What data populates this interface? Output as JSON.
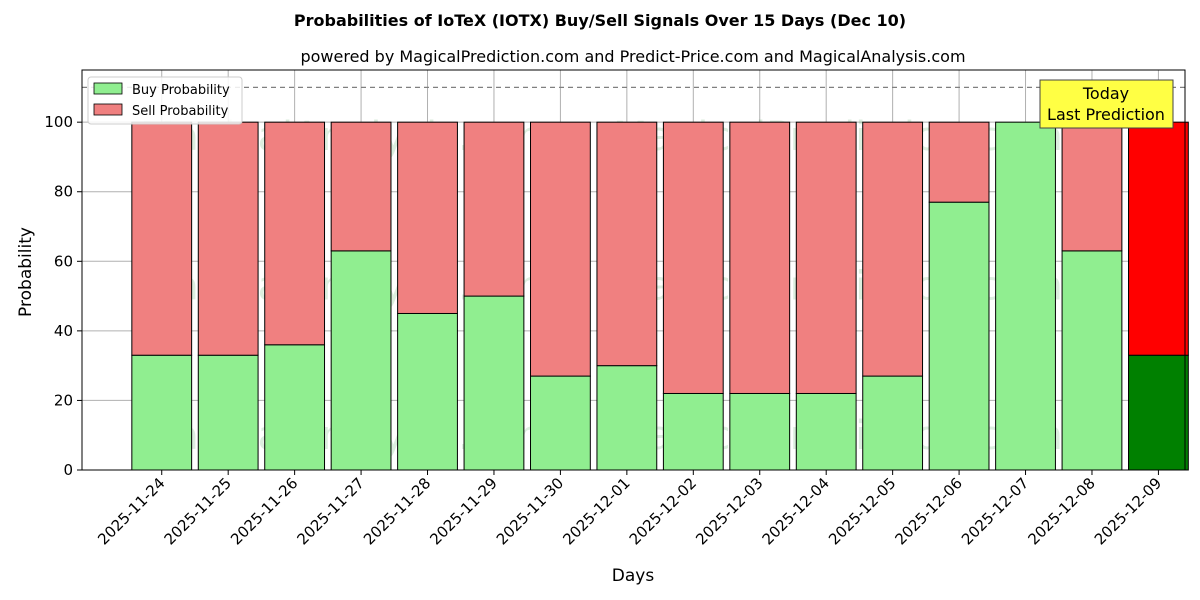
{
  "chart_data": {
    "type": "bar",
    "stacked": true,
    "title": "Probabilities of IoTeX (IOTX) Buy/Sell Signals Over 15 Days (Dec 10)",
    "subtitle": "powered by MagicalPrediction.com and Predict-Price.com and MagicalAnalysis.com",
    "xlabel": "Days",
    "ylabel": "Probability",
    "ylim": [
      0,
      115
    ],
    "yticks": [
      0,
      20,
      40,
      60,
      80,
      100
    ],
    "reference_line": 110,
    "grid": true,
    "legend_position": "top-left",
    "categories": [
      "2025-11-24",
      "2025-11-25",
      "2025-11-26",
      "2025-11-27",
      "2025-11-28",
      "2025-11-29",
      "2025-11-30",
      "2025-12-01",
      "2025-12-02",
      "2025-12-03",
      "2025-12-04",
      "2025-12-05",
      "2025-12-06",
      "2025-12-07",
      "2025-12-08",
      "2025-12-09"
    ],
    "series": [
      {
        "name": "Buy Probability",
        "color": "#90ee90",
        "values": [
          33,
          33,
          36,
          63,
          45,
          50,
          27,
          30,
          22,
          22,
          22,
          27,
          77,
          100,
          63,
          33
        ]
      },
      {
        "name": "Sell Probability",
        "color": "#f08080",
        "values": [
          67,
          67,
          64,
          37,
          55,
          50,
          73,
          70,
          78,
          78,
          78,
          73,
          23,
          0,
          37,
          67
        ]
      }
    ],
    "highlight": {
      "index": 15,
      "buy_color": "#008000",
      "sell_color": "#ff0000"
    },
    "annotation": {
      "lines": [
        "Today",
        "Last Prediction"
      ],
      "background": "#ffff44"
    },
    "watermarks": [
      "MagicalAnalysis.com",
      "MagicalPrediction.com"
    ]
  }
}
